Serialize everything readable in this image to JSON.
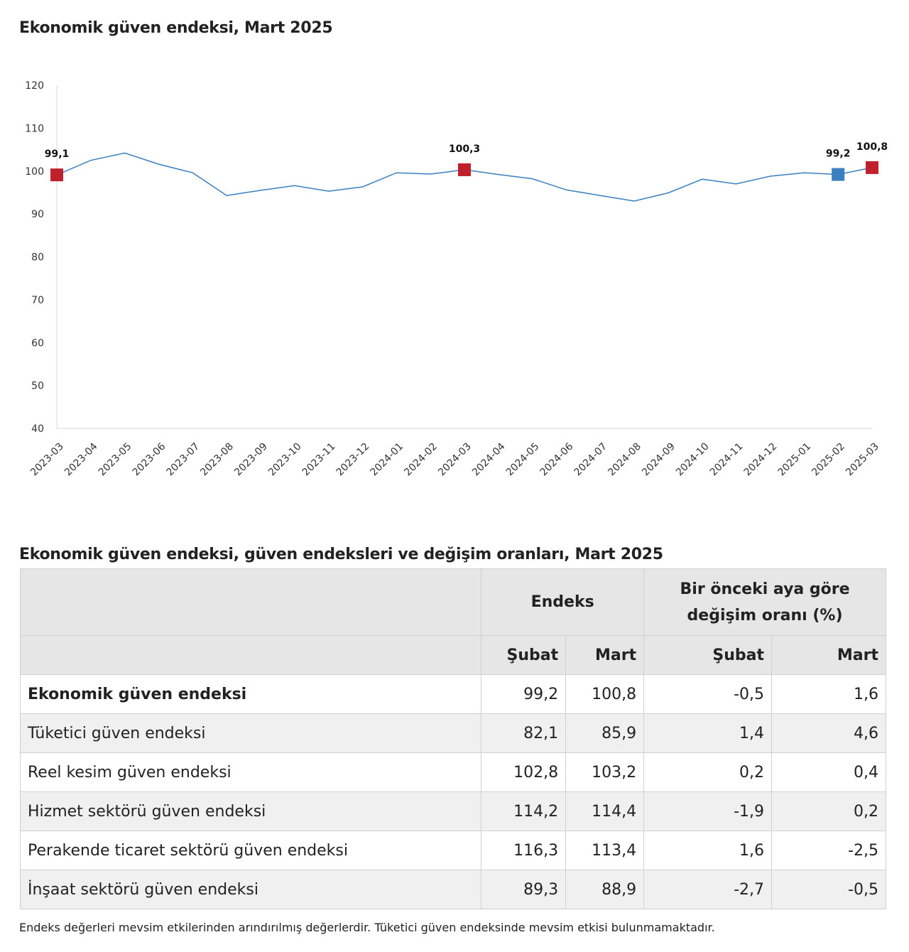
{
  "chart_title": "Ekonomik güven endeksi, Mart 2025",
  "chart_data": {
    "type": "line",
    "title": "Ekonomik güven endeksi, Mart 2025",
    "x": [
      "2023-03",
      "2023-04",
      "2023-05",
      "2023-06",
      "2023-07",
      "2023-08",
      "2023-09",
      "2023-10",
      "2023-11",
      "2023-12",
      "2024-01",
      "2024-02",
      "2024-03",
      "2024-04",
      "2024-05",
      "2024-06",
      "2024-07",
      "2024-08",
      "2024-09",
      "2024-10",
      "2024-11",
      "2024-12",
      "2025-01",
      "2025-02",
      "2025-03"
    ],
    "series": [
      {
        "values": [
          99.1,
          102.5,
          104.2,
          101.6,
          99.6,
          94.3,
          95.5,
          96.6,
          95.3,
          96.3,
          99.6,
          99.3,
          100.3,
          99.2,
          98.2,
          95.6,
          94.3,
          93.0,
          94.9,
          98.1,
          97.0,
          98.8,
          99.6,
          99.2,
          100.8
        ]
      }
    ],
    "highlighted_points": [
      {
        "x": "2023-03",
        "label": "99,1",
        "color": "#c0202b"
      },
      {
        "x": "2024-03",
        "label": "100,3",
        "color": "#c0202b"
      },
      {
        "x": "2025-02",
        "label": "99,2",
        "color": "#3a7fc0"
      },
      {
        "x": "2025-03",
        "label": "100,8",
        "color": "#c0202b"
      }
    ],
    "yticks": [
      "120",
      "110",
      "100",
      "90",
      "80",
      "70",
      "60",
      "50",
      "40"
    ],
    "ylim": [
      40,
      120
    ],
    "line_color": "#3a7fc0",
    "grid": false,
    "legend": "none"
  },
  "table": {
    "title": "Ekonomik güven endeksi, güven endeksleri ve değişim oranları, Mart 2025",
    "header_endeks": "Endeks",
    "header_change": "Bir önceki aya göre değişim oranı (%)",
    "sub_headers": [
      "Şubat",
      "Mart",
      "Şubat",
      "Mart"
    ],
    "rows": [
      {
        "label": "Ekonomik güven endeksi",
        "values": [
          "99,2",
          "100,8",
          "-0,5",
          "1,6"
        ]
      },
      {
        "label": "Tüketici güven endeksi",
        "values": [
          "82,1",
          "85,9",
          "1,4",
          "4,6"
        ]
      },
      {
        "label": "Reel kesim güven endeksi",
        "values": [
          "102,8",
          "103,2",
          "0,2",
          "0,4"
        ]
      },
      {
        "label": "Hizmet sektörü güven endeksi",
        "values": [
          "114,2",
          "114,4",
          "-1,9",
          "0,2"
        ]
      },
      {
        "label": "Perakende ticaret sektörü güven endeksi",
        "values": [
          "116,3",
          "113,4",
          "1,6",
          "-2,5"
        ]
      },
      {
        "label": "İnşaat sektörü güven endeksi",
        "values": [
          "89,3",
          "88,9",
          "-2,7",
          "-0,5"
        ]
      }
    ]
  },
  "note": "Endeks değerleri mevsim etkilerinden arındırılmış değerlerdir. Tüketici güven endeksinde mevsim etkisi bulunmamaktadır."
}
